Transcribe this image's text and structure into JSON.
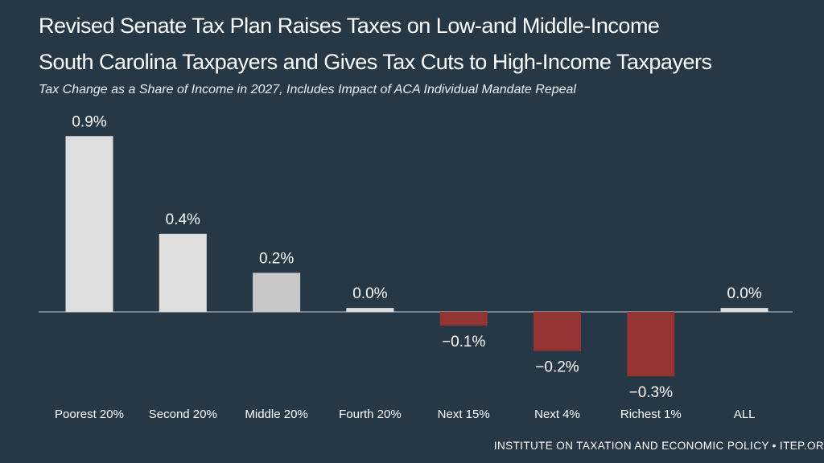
{
  "header": {
    "title_line1": "Revised Senate Tax Plan Raises Taxes on Low-and Middle-Income",
    "title_line2": "South Carolina Taxpayers and Gives Tax Cuts to High-Income Taxpayers",
    "subtitle": "Tax Change as a Share of Income in 2027, Includes Impact of ACA Individual Mandate Repeal"
  },
  "footer": {
    "source": "INSTITUTE ON TAXATION AND ECONOMIC POLICY • ITEP.OR"
  },
  "colors": {
    "background": "#263845",
    "positive": "#dedede",
    "middle": "#c8c8c8",
    "negative": "#943433",
    "baseline": "#c8d0d6",
    "text": "#ffffff"
  },
  "chart_data": {
    "type": "bar",
    "title": "Revised Senate Tax Plan Raises Taxes on Low-and Middle-Income South Carolina Taxpayers and Gives Tax Cuts to High-Income Taxpayers",
    "subtitle": "Tax Change as a Share of Income in 2027, Includes Impact of ACA Individual Mandate Repeal",
    "xlabel": "",
    "ylabel": "",
    "ylim": [
      -0.33,
      0.9
    ],
    "grid": false,
    "categories": [
      "Poorest 20%",
      "Second 20%",
      "Middle 20%",
      "Fourth 20%",
      "Next 15%",
      "Next 4%",
      "Richest 1%",
      "ALL"
    ],
    "values": [
      0.9,
      0.4,
      0.2,
      0.02,
      -0.07,
      -0.2,
      -0.33,
      0.02
    ],
    "labels": [
      "0.9%",
      "0.4%",
      "0.2%",
      "0.0%",
      "−0.1%",
      "−0.2%",
      "−0.3%",
      "0.0%"
    ]
  }
}
